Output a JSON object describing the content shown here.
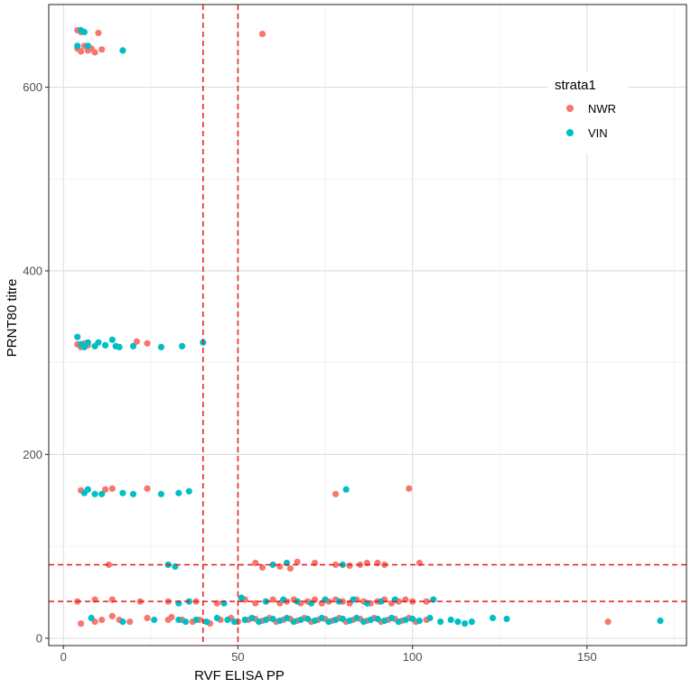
{
  "chart_data": {
    "type": "scatter",
    "title": "",
    "xlabel": "RVF ELISA PP",
    "ylabel": "PRNT80 titre",
    "xlim": [
      -4.2,
      178.5
    ],
    "ylim": [
      -8,
      690
    ],
    "x_ticks": [
      0,
      50,
      100,
      150
    ],
    "y_ticks": [
      0,
      200,
      400,
      600
    ],
    "x_tick_labels": [
      "0",
      "50",
      "100",
      "150"
    ],
    "y_tick_labels": [
      "0",
      "200",
      "400",
      "600"
    ],
    "grid": true,
    "reference_lines": {
      "vertical_x": [
        40,
        50
      ],
      "horizontal_y": [
        40,
        80
      ],
      "color": "#e41a1c",
      "style": "dashed"
    },
    "legend": {
      "title": "strata1",
      "position": "top-right",
      "entries": [
        {
          "label": "NWR",
          "color": "#F8766D"
        },
        {
          "label": "VIN",
          "color": "#00BFC4"
        }
      ]
    },
    "series": [
      {
        "name": "NWR",
        "color": "#F8766D",
        "points": [
          [
            4,
            662
          ],
          [
            5,
            660
          ],
          [
            6,
            645
          ],
          [
            7,
            640
          ],
          [
            8,
            642
          ],
          [
            9,
            638
          ],
          [
            10,
            659
          ],
          [
            11,
            641
          ],
          [
            57,
            658
          ],
          [
            4,
            642
          ],
          [
            5,
            639
          ],
          [
            4,
            320
          ],
          [
            5,
            318
          ],
          [
            6,
            321
          ],
          [
            7,
            319
          ],
          [
            21,
            323
          ],
          [
            24,
            321
          ],
          [
            5,
            317
          ],
          [
            5,
            161
          ],
          [
            12,
            162
          ],
          [
            14,
            163
          ],
          [
            24,
            163
          ],
          [
            78,
            157
          ],
          [
            99,
            163
          ],
          [
            13,
            80
          ],
          [
            30,
            80
          ],
          [
            55,
            82
          ],
          [
            57,
            77
          ],
          [
            62,
            78
          ],
          [
            65,
            76
          ],
          [
            67,
            83
          ],
          [
            72,
            82
          ],
          [
            78,
            80
          ],
          [
            82,
            79
          ],
          [
            85,
            80
          ],
          [
            87,
            82
          ],
          [
            90,
            82
          ],
          [
            92,
            80
          ],
          [
            102,
            82
          ],
          [
            4,
            40
          ],
          [
            9,
            42
          ],
          [
            14,
            42
          ],
          [
            22,
            40
          ],
          [
            30,
            40
          ],
          [
            38,
            40
          ],
          [
            44,
            38
          ],
          [
            52,
            42
          ],
          [
            55,
            38
          ],
          [
            58,
            40
          ],
          [
            60,
            42
          ],
          [
            62,
            38
          ],
          [
            64,
            40
          ],
          [
            66,
            42
          ],
          [
            68,
            38
          ],
          [
            70,
            40
          ],
          [
            72,
            42
          ],
          [
            74,
            38
          ],
          [
            76,
            40
          ],
          [
            78,
            42
          ],
          [
            80,
            40
          ],
          [
            82,
            38
          ],
          [
            84,
            42
          ],
          [
            86,
            40
          ],
          [
            88,
            38
          ],
          [
            90,
            40
          ],
          [
            92,
            42
          ],
          [
            94,
            38
          ],
          [
            96,
            40
          ],
          [
            98,
            42
          ],
          [
            100,
            40
          ],
          [
            104,
            40
          ],
          [
            5,
            16
          ],
          [
            9,
            18
          ],
          [
            11,
            20
          ],
          [
            14,
            24
          ],
          [
            16,
            20
          ],
          [
            19,
            18
          ],
          [
            24,
            22
          ],
          [
            30,
            20
          ],
          [
            31,
            23
          ],
          [
            34,
            20
          ],
          [
            37,
            18
          ],
          [
            39,
            20
          ],
          [
            42,
            16
          ],
          [
            45,
            20
          ],
          [
            48,
            22
          ],
          [
            50,
            18
          ],
          [
            53,
            20
          ],
          [
            55,
            21
          ],
          [
            57,
            19
          ],
          [
            59,
            22
          ],
          [
            61,
            18
          ],
          [
            63,
            20
          ],
          [
            65,
            21
          ],
          [
            67,
            19
          ],
          [
            69,
            22
          ],
          [
            71,
            18
          ],
          [
            73,
            20
          ],
          [
            75,
            21
          ],
          [
            77,
            19
          ],
          [
            79,
            22
          ],
          [
            81,
            18
          ],
          [
            83,
            20
          ],
          [
            85,
            21
          ],
          [
            87,
            19
          ],
          [
            89,
            22
          ],
          [
            91,
            18
          ],
          [
            93,
            20
          ],
          [
            95,
            21
          ],
          [
            97,
            19
          ],
          [
            99,
            22
          ],
          [
            101,
            18
          ],
          [
            104,
            20
          ],
          [
            156,
            18
          ]
        ]
      },
      {
        "name": "VIN",
        "color": "#00BFC4",
        "points": [
          [
            4,
            645
          ],
          [
            5,
            662
          ],
          [
            6,
            660
          ],
          [
            7,
            645
          ],
          [
            17,
            640
          ],
          [
            4,
            328
          ],
          [
            5,
            320
          ],
          [
            6,
            317
          ],
          [
            7,
            322
          ],
          [
            9,
            318
          ],
          [
            10,
            322
          ],
          [
            12,
            319
          ],
          [
            14,
            325
          ],
          [
            15,
            318
          ],
          [
            16,
            317
          ],
          [
            20,
            318
          ],
          [
            28,
            317
          ],
          [
            34,
            318
          ],
          [
            40,
            322
          ],
          [
            6,
            158
          ],
          [
            7,
            162
          ],
          [
            9,
            157
          ],
          [
            11,
            157
          ],
          [
            17,
            158
          ],
          [
            20,
            157
          ],
          [
            28,
            157
          ],
          [
            33,
            158
          ],
          [
            36,
            160
          ],
          [
            81,
            162
          ],
          [
            30,
            80
          ],
          [
            32,
            78
          ],
          [
            60,
            80
          ],
          [
            64,
            82
          ],
          [
            80,
            80
          ],
          [
            33,
            38
          ],
          [
            36,
            40
          ],
          [
            46,
            38
          ],
          [
            51,
            44
          ],
          [
            58,
            40
          ],
          [
            63,
            42
          ],
          [
            67,
            40
          ],
          [
            71,
            38
          ],
          [
            75,
            42
          ],
          [
            79,
            40
          ],
          [
            83,
            42
          ],
          [
            87,
            38
          ],
          [
            91,
            40
          ],
          [
            95,
            42
          ],
          [
            106,
            42
          ],
          [
            8,
            22
          ],
          [
            17,
            18
          ],
          [
            26,
            20
          ],
          [
            33,
            20
          ],
          [
            35,
            18
          ],
          [
            38,
            20
          ],
          [
            41,
            18
          ],
          [
            44,
            22
          ],
          [
            47,
            20
          ],
          [
            49,
            18
          ],
          [
            52,
            20
          ],
          [
            54,
            22
          ],
          [
            56,
            18
          ],
          [
            58,
            20
          ],
          [
            60,
            21
          ],
          [
            62,
            19
          ],
          [
            64,
            22
          ],
          [
            66,
            18
          ],
          [
            68,
            20
          ],
          [
            70,
            21
          ],
          [
            72,
            19
          ],
          [
            74,
            22
          ],
          [
            76,
            18
          ],
          [
            78,
            20
          ],
          [
            80,
            21
          ],
          [
            82,
            19
          ],
          [
            84,
            22
          ],
          [
            86,
            18
          ],
          [
            88,
            20
          ],
          [
            90,
            21
          ],
          [
            92,
            19
          ],
          [
            94,
            22
          ],
          [
            96,
            18
          ],
          [
            98,
            20
          ],
          [
            100,
            21
          ],
          [
            102,
            19
          ],
          [
            105,
            22
          ],
          [
            108,
            18
          ],
          [
            111,
            20
          ],
          [
            113,
            18
          ],
          [
            115,
            16
          ],
          [
            117,
            18
          ],
          [
            123,
            22
          ],
          [
            127,
            21
          ],
          [
            171,
            19
          ]
        ]
      }
    ]
  }
}
